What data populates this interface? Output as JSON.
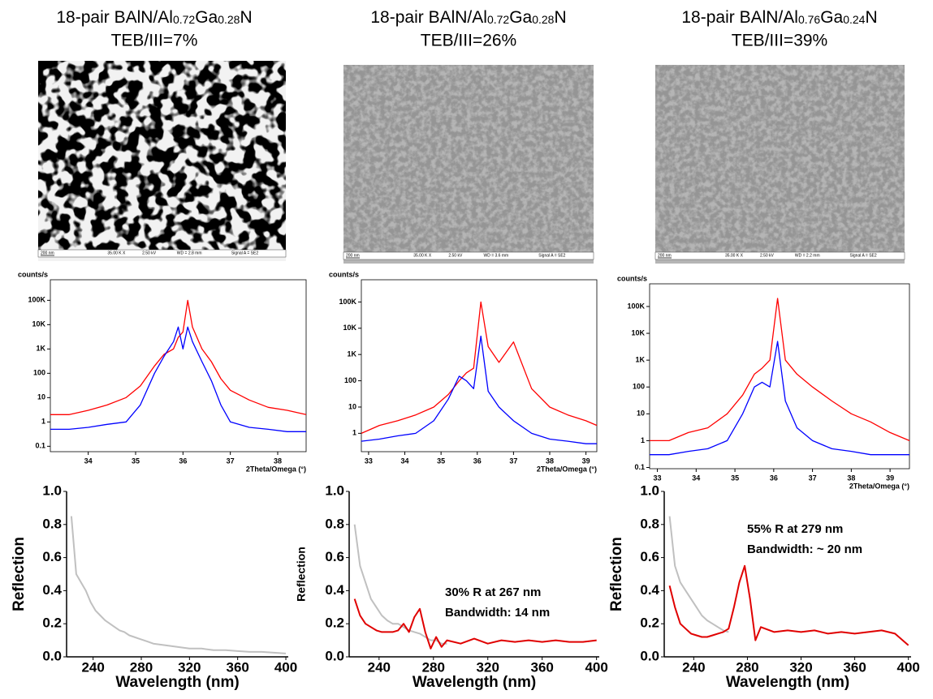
{
  "panels": [
    {
      "title": [
        "18-pair BAlN/Al",
        "0.72",
        "Ga",
        "0.28",
        "N"
      ],
      "subtitle": "TEB/III=7%",
      "sem_info": [
        "200 nm",
        "35.00 K X",
        "2.50 kV",
        "WD = 2.8 mm",
        "Signal A = SE2"
      ]
    },
    {
      "title": [
        "18-pair BAlN/Al",
        "0.72",
        "Ga",
        "0.28",
        "N"
      ],
      "subtitle": "TEB/III=26%",
      "sem_info": [
        "200 nm",
        "35.00 K X",
        "2.50 kV",
        "WD = 3.6 mm",
        "Signal A = SE2"
      ]
    },
    {
      "title": [
        "18-pair BAlN/Al",
        "0.76",
        "Ga",
        "0.24",
        "N"
      ],
      "subtitle": "TEB/III=39%",
      "sem_info": [
        "200 nm",
        "35.00 K X",
        "2.50 kV",
        "WD = 2.2 mm",
        "Signal A = SE2"
      ]
    }
  ],
  "chart_data": [
    {
      "type": "line",
      "yscale": "log",
      "ylabel": "counts/s",
      "xlabel": "2Theta/Omega (°)",
      "x": [
        33.2,
        33.6,
        34,
        34.4,
        34.8,
        35.1,
        35.4,
        35.6,
        35.8,
        35.9,
        36.0,
        36.1,
        36.2,
        36.4,
        36.6,
        36.8,
        37.0,
        37.4,
        37.8,
        38.2,
        38.6
      ],
      "xlim": [
        33.2,
        38.6
      ],
      "xticks": [
        34,
        35,
        36,
        37,
        38
      ],
      "ylim": [
        0.06,
        700000
      ],
      "yticks": [
        0.1,
        1,
        10,
        100,
        {
          "value": 1000,
          "label": "1K"
        },
        {
          "value": 10000,
          "label": "10K"
        },
        {
          "value": 100000,
          "label": "100K"
        }
      ],
      "series": [
        {
          "color": "#ff0000",
          "values": [
            2,
            2,
            3,
            5,
            10,
            30,
            200,
            600,
            1000,
            3000,
            5000,
            100000,
            8000,
            1000,
            300,
            60,
            20,
            8,
            4,
            3,
            2
          ]
        },
        {
          "color": "#0000ff",
          "values": [
            0.5,
            0.5,
            0.6,
            0.8,
            1,
            5,
            100,
            500,
            2000,
            8000,
            1000,
            8000,
            2000,
            300,
            50,
            5,
            1,
            0.6,
            0.5,
            0.4,
            0.4
          ]
        }
      ]
    },
    {
      "type": "line",
      "yscale": "log",
      "ylabel": "counts/s",
      "xlabel": "2Theta/Omega (°)",
      "x": [
        32.8,
        33.3,
        33.8,
        34.3,
        34.8,
        35.2,
        35.5,
        35.7,
        35.9,
        36.1,
        36.3,
        36.6,
        37.0,
        37.5,
        38.0,
        38.5,
        39.0,
        39.3
      ],
      "xlim": [
        32.8,
        39.3
      ],
      "xticks": [
        33,
        34,
        35,
        36,
        37,
        38,
        39
      ],
      "ylim": [
        0.2,
        700000
      ],
      "yticks": [
        1,
        10,
        100,
        {
          "value": 1000,
          "label": "1K"
        },
        {
          "value": 10000,
          "label": "10K"
        },
        {
          "value": 100000,
          "label": "100K"
        }
      ],
      "series": [
        {
          "color": "#ff0000",
          "values": [
            1,
            2,
            3,
            5,
            10,
            30,
            100,
            200,
            300,
            100000,
            2000,
            500,
            3000,
            50,
            10,
            5,
            3,
            2
          ]
        },
        {
          "color": "#0000ff",
          "values": [
            0.5,
            0.6,
            0.8,
            1,
            3,
            20,
            150,
            100,
            50,
            5000,
            40,
            10,
            3,
            1,
            0.6,
            0.5,
            0.4,
            0.4
          ]
        }
      ]
    },
    {
      "type": "line",
      "yscale": "log",
      "ylabel": "counts/s",
      "xlabel": "2Theta/Omega (°)",
      "x": [
        32.8,
        33.3,
        33.8,
        34.3,
        34.8,
        35.2,
        35.5,
        35.7,
        35.9,
        36.1,
        36.3,
        36.6,
        37.0,
        37.5,
        38.0,
        38.5,
        39.0,
        39.5
      ],
      "xlim": [
        32.8,
        39.5
      ],
      "xticks": [
        33,
        34,
        35,
        36,
        37,
        38,
        39
      ],
      "ylim": [
        0.09,
        700000
      ],
      "yticks": [
        0.1,
        1,
        10,
        100,
        {
          "value": 1000,
          "label": "1K"
        },
        {
          "value": 10000,
          "label": "10K"
        },
        {
          "value": 100000,
          "label": "100K"
        }
      ],
      "series": [
        {
          "color": "#ff0000",
          "values": [
            1,
            1,
            2,
            3,
            10,
            50,
            300,
            500,
            1000,
            200000,
            1000,
            300,
            100,
            30,
            10,
            5,
            2,
            1
          ]
        },
        {
          "color": "#0000ff",
          "values": [
            0.3,
            0.3,
            0.4,
            0.5,
            1,
            10,
            100,
            150,
            100,
            5000,
            30,
            3,
            1,
            0.5,
            0.4,
            0.3,
            0.3,
            0.3
          ]
        }
      ]
    },
    {
      "type": "line",
      "ylabel": "Reflection",
      "xlabel": "Wavelength (nm)",
      "x": [
        222,
        226,
        230,
        234,
        238,
        242,
        246,
        250,
        254,
        258,
        262,
        266,
        270,
        274,
        278,
        282,
        286,
        290,
        300,
        310,
        320,
        330,
        340,
        350,
        360,
        370,
        380,
        390,
        400
      ],
      "xlim": [
        218,
        402
      ],
      "xticks": [
        240,
        280,
        320,
        360,
        400
      ],
      "ylim": [
        0,
        1
      ],
      "yticks": [
        {
          "value": 0,
          "label": "0.0"
        },
        0.2,
        0.4,
        0.6,
        0.8,
        {
          "value": 1,
          "label": "1.0"
        }
      ],
      "series": [
        {
          "color": "#c0c0c0",
          "values": [
            0.85,
            0.5,
            0.45,
            0.4,
            0.33,
            0.28,
            0.25,
            0.22,
            0.2,
            0.18,
            0.16,
            0.15,
            0.13,
            0.12,
            0.11,
            0.1,
            0.09,
            0.08,
            0.07,
            0.06,
            0.05,
            0.05,
            0.04,
            0.04,
            0.035,
            0.03,
            0.03,
            0.025,
            0.02
          ]
        }
      ]
    },
    {
      "type": "line",
      "ylabel": "Reflection",
      "xlabel": "Wavelength (nm)",
      "annotations": [
        "30% R at 267 nm",
        "Bandwidth: 14 nm"
      ],
      "x": [
        222,
        226,
        230,
        234,
        238,
        242,
        246,
        250,
        254,
        258,
        262,
        266,
        270,
        274,
        278,
        282,
        286,
        290,
        300,
        310,
        320,
        330,
        340,
        350,
        360,
        370,
        380,
        390,
        400
      ],
      "xlim": [
        218,
        402
      ],
      "xticks": [
        240,
        280,
        320,
        360,
        400
      ],
      "ylim": [
        0,
        1
      ],
      "yticks": [
        {
          "value": 0,
          "label": "0.0"
        },
        0.2,
        0.4,
        0.6,
        0.8,
        {
          "value": 1,
          "label": "1.0"
        }
      ],
      "series": [
        {
          "color": "#c0c0c0",
          "values": [
            0.8,
            0.55,
            0.45,
            0.35,
            0.3,
            0.25,
            0.22,
            0.2,
            0.2,
            0.18,
            0.16,
            0.15,
            0.14,
            0.12,
            0.1,
            0.1,
            0.08,
            0.08,
            null,
            null,
            null,
            null,
            null,
            null,
            null,
            null,
            null,
            null,
            null
          ]
        },
        {
          "color": "#e00000",
          "values": [
            0.35,
            0.25,
            0.2,
            0.18,
            0.16,
            0.15,
            0.15,
            0.15,
            0.16,
            0.2,
            0.15,
            0.24,
            0.29,
            0.15,
            0.05,
            0.12,
            0.06,
            0.1,
            0.08,
            0.11,
            0.08,
            0.1,
            0.09,
            0.1,
            0.09,
            0.1,
            0.09,
            0.09,
            0.1
          ]
        }
      ]
    },
    {
      "type": "line",
      "ylabel": "Reflection",
      "xlabel": "Wavelength (nm)",
      "annotations": [
        "55% R at 279 nm",
        "Bandwidth: ~ 20 nm"
      ],
      "x": [
        222,
        226,
        230,
        234,
        238,
        242,
        246,
        250,
        254,
        258,
        262,
        266,
        270,
        274,
        278,
        282,
        286,
        290,
        300,
        310,
        320,
        330,
        340,
        350,
        360,
        370,
        380,
        390,
        400
      ],
      "xlim": [
        218,
        402
      ],
      "xticks": [
        240,
        280,
        320,
        360,
        400
      ],
      "ylim": [
        0,
        1
      ],
      "yticks": [
        {
          "value": 0,
          "label": "0.0"
        },
        0.2,
        0.4,
        0.6,
        0.8,
        {
          "value": 1,
          "label": "1.0"
        }
      ],
      "series": [
        {
          "color": "#c0c0c0",
          "values": [
            0.85,
            0.55,
            0.45,
            0.4,
            0.35,
            0.3,
            0.25,
            0.22,
            0.2,
            0.18,
            0.16,
            0.15,
            null,
            null,
            null,
            null,
            null,
            null,
            null,
            null,
            null,
            null,
            null,
            null,
            null,
            null,
            null,
            null,
            null
          ]
        },
        {
          "color": "#e00000",
          "values": [
            0.43,
            0.3,
            0.2,
            0.17,
            0.14,
            0.13,
            0.12,
            0.12,
            0.13,
            0.14,
            0.15,
            0.17,
            0.3,
            0.45,
            0.55,
            0.35,
            0.1,
            0.18,
            0.15,
            0.16,
            0.15,
            0.16,
            0.14,
            0.15,
            0.14,
            0.15,
            0.16,
            0.14,
            0.07
          ]
        }
      ]
    }
  ]
}
